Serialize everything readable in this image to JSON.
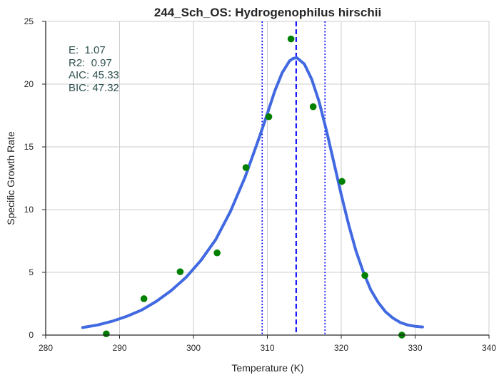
{
  "chart_data": {
    "type": "scatter",
    "title": "244_Sch_OS: Hydrogenophilus hirschii",
    "xlabel": "Temperature (K)",
    "ylabel": "Specific Growth Rate",
    "xlim": [
      280,
      340
    ],
    "ylim": [
      0,
      25
    ],
    "xticks": [
      "280",
      "290",
      "300",
      "310",
      "320",
      "330",
      "340"
    ],
    "yticks": [
      "0",
      "5",
      "10",
      "15",
      "20",
      "25"
    ],
    "grid": true,
    "series": [
      {
        "kind": "points",
        "color": "#008000",
        "x": [
          288.2,
          293.3,
          298.2,
          303.2,
          307.1,
          310.2,
          313.2,
          316.2,
          320.1,
          323.2,
          328.2
        ],
        "y": [
          0.1,
          2.9,
          5.05,
          6.55,
          13.35,
          17.4,
          23.6,
          18.2,
          12.25,
          4.75,
          0.0
        ]
      },
      {
        "kind": "fit-curve",
        "color": "#4169e1",
        "x": [
          285,
          287,
          289,
          291,
          293,
          295,
          297,
          299,
          301,
          303,
          305,
          307,
          309,
          310,
          311,
          312,
          313,
          313.5,
          314,
          315,
          316,
          317,
          318,
          319,
          320,
          321,
          322,
          323,
          324,
          325,
          326,
          327,
          328,
          329,
          330,
          331
        ],
        "y": [
          0.6,
          0.8,
          1.1,
          1.5,
          2.0,
          2.7,
          3.55,
          4.6,
          5.95,
          7.6,
          9.85,
          12.6,
          15.9,
          17.65,
          19.45,
          20.9,
          21.85,
          22.05,
          22.1,
          21.6,
          20.4,
          18.6,
          16.3,
          13.75,
          11.2,
          8.8,
          6.7,
          5.0,
          3.6,
          2.6,
          1.85,
          1.35,
          1.0,
          0.8,
          0.7,
          0.65
        ]
      }
    ],
    "vlines": [
      {
        "x": 313.9,
        "style": "dashed",
        "color": "#0000ff"
      },
      {
        "x": 309.3,
        "style": "dotted",
        "color": "#0000ff"
      },
      {
        "x": 317.8,
        "style": "dotted",
        "color": "#0000ff"
      }
    ],
    "annotations": [
      "E:  1.07",
      "R2:  0.97",
      "AIC: 45.33",
      "BIC: 47.32"
    ]
  }
}
